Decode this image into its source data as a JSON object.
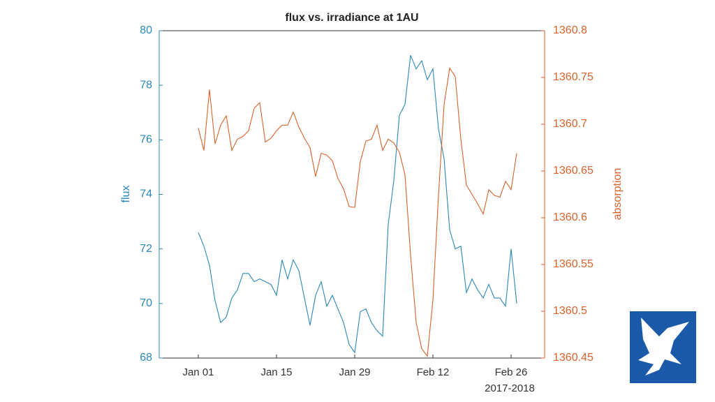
{
  "chart_data": {
    "type": "line",
    "title": "flux vs. irradiance at 1AU",
    "ylabel": "flux",
    "y2label": "absorption",
    "x_secondary_label": "2017-2018",
    "x": [
      "2018-01-01",
      "2018-01-02",
      "2018-01-03",
      "2018-01-04",
      "2018-01-05",
      "2018-01-06",
      "2018-01-07",
      "2018-01-08",
      "2018-01-09",
      "2018-01-10",
      "2018-01-11",
      "2018-01-12",
      "2018-01-13",
      "2018-01-14",
      "2018-01-15",
      "2018-01-16",
      "2018-01-17",
      "2018-01-18",
      "2018-01-19",
      "2018-01-20",
      "2018-01-21",
      "2018-01-22",
      "2018-01-23",
      "2018-01-24",
      "2018-01-25",
      "2018-01-26",
      "2018-01-27",
      "2018-01-28",
      "2018-01-29",
      "2018-01-30",
      "2018-01-31",
      "2018-02-01",
      "2018-02-02",
      "2018-02-03",
      "2018-02-04",
      "2018-02-05",
      "2018-02-06",
      "2018-02-07",
      "2018-02-08",
      "2018-02-09",
      "2018-02-10",
      "2018-02-11",
      "2018-02-12",
      "2018-02-13",
      "2018-02-14",
      "2018-02-15",
      "2018-02-16",
      "2018-02-17",
      "2018-02-18",
      "2018-02-19",
      "2018-02-20",
      "2018-02-21",
      "2018-02-22",
      "2018-02-23",
      "2018-02-24",
      "2018-02-25",
      "2018-02-26",
      "2018-02-27"
    ],
    "series": [
      {
        "name": "flux",
        "color": "#2b88b9",
        "axis": "y",
        "values": [
          72.6,
          72.1,
          71.4,
          70.1,
          69.3,
          69.5,
          70.2,
          70.5,
          71.1,
          71.1,
          70.8,
          70.9,
          70.8,
          70.7,
          70.3,
          71.6,
          70.9,
          71.6,
          71.2,
          70.2,
          69.2,
          70.3,
          70.8,
          69.9,
          70.3,
          69.8,
          69.3,
          68.5,
          68.2,
          69.7,
          69.8,
          69.3,
          69.0,
          68.8,
          72.9,
          74.5,
          76.9,
          77.3,
          79.1,
          78.6,
          78.9,
          78.2,
          78.6,
          76.4,
          75.3,
          72.7,
          72.0,
          72.1,
          70.4,
          70.9,
          70.5,
          70.2,
          70.7,
          70.2,
          70.2,
          69.9,
          72.0,
          70.0
        ]
      },
      {
        "name": "absorption",
        "color": "#d9622b",
        "axis": "y2",
        "values": [
          1360.696,
          1360.672,
          1360.737,
          1360.679,
          1360.699,
          1360.709,
          1360.672,
          1360.684,
          1360.687,
          1360.693,
          1360.717,
          1360.723,
          1360.681,
          1360.685,
          1360.693,
          1360.699,
          1360.699,
          1360.713,
          1360.697,
          1360.685,
          1360.675,
          1360.644,
          1360.669,
          1360.667,
          1360.661,
          1360.642,
          1360.631,
          1360.612,
          1360.611,
          1360.66,
          1360.682,
          1360.684,
          1360.699,
          1360.672,
          1360.684,
          1360.68,
          1360.67,
          1360.646,
          1360.56,
          1360.488,
          1360.46,
          1360.452,
          1360.512,
          1360.624,
          1360.721,
          1360.76,
          1360.751,
          1360.684,
          1360.635,
          1360.625,
          1360.615,
          1360.604,
          1360.63,
          1360.624,
          1360.622,
          1360.639,
          1360.63,
          1360.669
        ]
      }
    ],
    "xlim": [
      "2017-12-25",
      "2018-03-04"
    ],
    "xticks": [
      {
        "value": "2018-01-01",
        "label": "Jan 01"
      },
      {
        "value": "2018-01-15",
        "label": "Jan 15"
      },
      {
        "value": "2018-01-29",
        "label": "Jan 29"
      },
      {
        "value": "2018-02-12",
        "label": "Feb 12"
      },
      {
        "value": "2018-02-26",
        "label": "Feb 26"
      }
    ],
    "ylim": [
      68,
      80
    ],
    "yticks": [
      68,
      70,
      72,
      74,
      76,
      78,
      80
    ],
    "y2lim": [
      1360.45,
      1360.8
    ],
    "y2ticks": [
      1360.45,
      1360.5,
      1360.55,
      1360.6,
      1360.65,
      1360.7,
      1360.75,
      1360.8
    ],
    "grid": false
  }
}
